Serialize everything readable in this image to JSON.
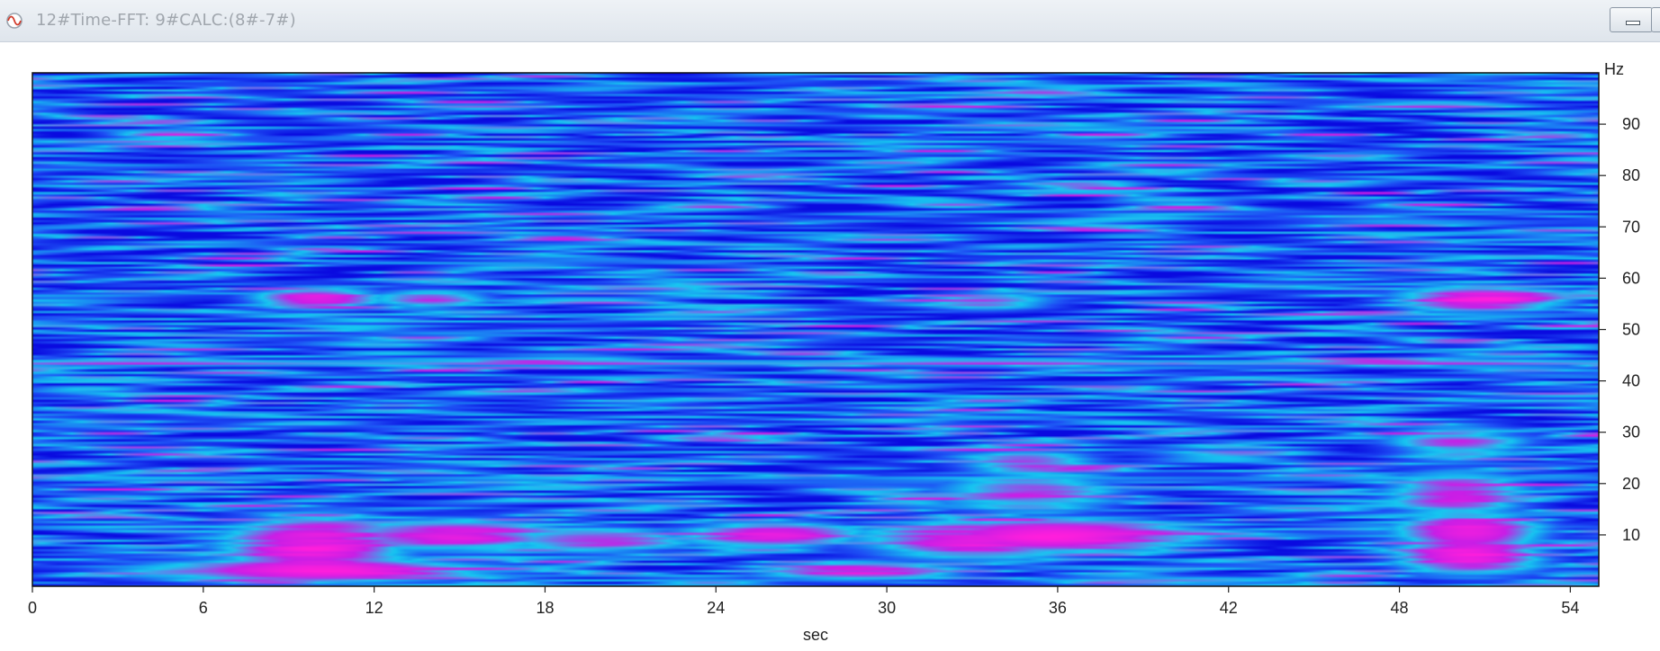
{
  "window": {
    "title": "12#Time-FFT:  9#CALC:(8#-7#)",
    "controls": [
      "minimize",
      "restore"
    ]
  },
  "icons": {
    "window_icon": "signal-wave-icon",
    "minimize": "minimize-icon",
    "restore": "restore-icon"
  },
  "chart_data": {
    "type": "heatmap",
    "title": "",
    "xlabel": "sec",
    "ylabel_unit": "Hz",
    "xlim": [
      0,
      55
    ],
    "ylim": [
      0,
      100
    ],
    "x_ticks": [
      0,
      6,
      12,
      18,
      24,
      30,
      36,
      42,
      48,
      54
    ],
    "y_ticks": [
      10,
      20,
      30,
      40,
      50,
      60,
      70,
      80,
      90
    ],
    "y_axis_side": "right",
    "grid": false,
    "legend": "none",
    "colormap": [
      "#0a0ae0",
      "#1e50f5",
      "#16c8f0",
      "#c81ee6",
      "#ff1edc"
    ],
    "background_level": 0.25,
    "hotspots": [
      {
        "x": 10.0,
        "y": 8.0,
        "sx": 2.5,
        "sy": 4.5,
        "level": 0.95
      },
      {
        "x": 10.0,
        "y": 3.0,
        "sx": 5.0,
        "sy": 1.8,
        "level": 0.9
      },
      {
        "x": 15.0,
        "y": 10.0,
        "sx": 3.0,
        "sy": 2.5,
        "level": 0.8
      },
      {
        "x": 20.0,
        "y": 9.0,
        "sx": 2.5,
        "sy": 2.0,
        "level": 0.7
      },
      {
        "x": 26.0,
        "y": 10.0,
        "sx": 2.5,
        "sy": 2.0,
        "level": 0.85
      },
      {
        "x": 29.0,
        "y": 3.0,
        "sx": 3.0,
        "sy": 1.5,
        "level": 0.8
      },
      {
        "x": 33.0,
        "y": 9.0,
        "sx": 3.0,
        "sy": 3.0,
        "level": 0.85
      },
      {
        "x": 36.5,
        "y": 10.0,
        "sx": 3.5,
        "sy": 2.5,
        "level": 0.95
      },
      {
        "x": 35.0,
        "y": 18.0,
        "sx": 2.5,
        "sy": 3.0,
        "level": 0.7
      },
      {
        "x": 35.0,
        "y": 24.0,
        "sx": 2.0,
        "sy": 2.0,
        "level": 0.65
      },
      {
        "x": 50.5,
        "y": 6.0,
        "sx": 2.0,
        "sy": 3.0,
        "level": 0.95
      },
      {
        "x": 50.5,
        "y": 11.0,
        "sx": 2.0,
        "sy": 2.5,
        "level": 0.9
      },
      {
        "x": 50.0,
        "y": 18.0,
        "sx": 2.0,
        "sy": 3.5,
        "level": 0.75
      },
      {
        "x": 50.0,
        "y": 28.0,
        "sx": 2.0,
        "sy": 3.0,
        "level": 0.65
      },
      {
        "x": 10.0,
        "y": 56.0,
        "sx": 1.8,
        "sy": 1.7,
        "level": 0.85
      },
      {
        "x": 14.0,
        "y": 56.0,
        "sx": 1.6,
        "sy": 1.5,
        "level": 0.7
      },
      {
        "x": 33.5,
        "y": 55.5,
        "sx": 2.0,
        "sy": 1.5,
        "level": 0.6
      },
      {
        "x": 51.0,
        "y": 56.0,
        "sx": 2.3,
        "sy": 2.0,
        "level": 0.95
      },
      {
        "x": 40.0,
        "y": 1.0,
        "sx": 4.0,
        "sy": 0.8,
        "level": 0.55
      }
    ],
    "horizontal_lines": [
      {
        "y": 43.5,
        "level": 0.72
      },
      {
        "y": 21.0,
        "level": 0.45
      }
    ]
  }
}
